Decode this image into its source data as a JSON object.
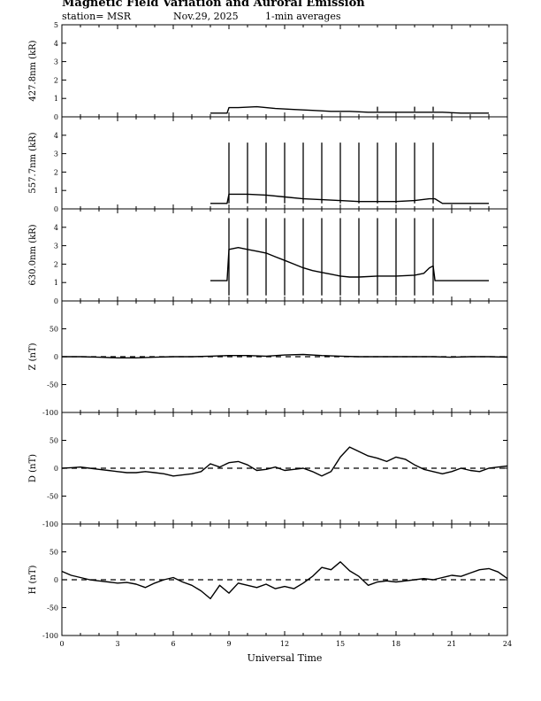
{
  "header": {
    "title": "Magnetic Field Variation and Auroral Emission",
    "station": "station= MSR",
    "date": "Nov.29, 2025",
    "averaging": "1-min averages"
  },
  "chart_data": [
    {
      "type": "line",
      "ylabel": "427.8nm (kR)",
      "ylim": [
        0,
        5
      ],
      "yticks": [
        "0",
        "1",
        "2",
        "3",
        "4",
        "5"
      ],
      "xlim": [
        0,
        24
      ],
      "series": [
        {
          "x": [
            8.0,
            8.9,
            9.0,
            9.5,
            10.5,
            11.5,
            12.5,
            13.5,
            14.5,
            15.5,
            16.5,
            17.5,
            18.5,
            19.5,
            20.5,
            21.5,
            22.5,
            23.0
          ],
          "values": [
            0.2,
            0.2,
            0.5,
            0.5,
            0.55,
            0.45,
            0.4,
            0.35,
            0.3,
            0.3,
            0.25,
            0.25,
            0.25,
            0.25,
            0.25,
            0.2,
            0.2,
            0.2
          ]
        }
      ],
      "spikes": {
        "x": [
          17.0,
          19.0,
          20.0
        ],
        "height": 0.55
      }
    },
    {
      "type": "line",
      "ylabel": "557.7nm (kR)",
      "ylim": [
        0,
        5
      ],
      "yticks": [
        "0",
        "1",
        "2",
        "3",
        "4"
      ],
      "xlim": [
        0,
        24
      ],
      "series": [
        {
          "x": [
            8.0,
            8.9,
            9.0,
            10.0,
            11.0,
            12.0,
            13.0,
            14.0,
            15.0,
            16.0,
            17.0,
            18.0,
            19.0,
            19.8,
            20.1,
            20.5,
            21.5,
            23.0
          ],
          "values": [
            0.3,
            0.3,
            0.8,
            0.8,
            0.75,
            0.65,
            0.55,
            0.5,
            0.45,
            0.4,
            0.4,
            0.4,
            0.45,
            0.55,
            0.55,
            0.3,
            0.3,
            0.3
          ]
        }
      ],
      "spikes": {
        "x": [
          9,
          10,
          11,
          12,
          13,
          14,
          15,
          16,
          17,
          18,
          19,
          20
        ],
        "height": 3.6
      }
    },
    {
      "type": "line",
      "ylabel": "630.0nm (kR)",
      "ylim": [
        0,
        5
      ],
      "yticks": [
        "0",
        "1",
        "2",
        "3",
        "4"
      ],
      "xlim": [
        0,
        24
      ],
      "series": [
        {
          "x": [
            8.0,
            8.9,
            9.0,
            9.5,
            10.0,
            10.5,
            11.0,
            11.5,
            12.0,
            12.5,
            13.0,
            13.5,
            14.0,
            14.5,
            15.0,
            15.5,
            16.0,
            17.0,
            18.0,
            19.0,
            19.5,
            19.8,
            20.0,
            20.1,
            21.0,
            22.0,
            23.0
          ],
          "values": [
            1.1,
            1.1,
            2.8,
            2.9,
            2.8,
            2.7,
            2.6,
            2.4,
            2.2,
            2.0,
            1.8,
            1.65,
            1.55,
            1.45,
            1.35,
            1.3,
            1.3,
            1.35,
            1.35,
            1.4,
            1.5,
            1.8,
            1.9,
            1.1,
            1.1,
            1.1,
            1.1
          ]
        }
      ],
      "spikes": {
        "x": [
          9,
          10,
          11,
          12,
          13,
          14,
          15,
          16,
          17,
          18,
          19,
          20
        ],
        "height": 4.5
      }
    },
    {
      "type": "line",
      "ylabel": "Z (nT)",
      "ylim": [
        -100,
        100
      ],
      "yticks": [
        "-100",
        "-50",
        "0",
        "50"
      ],
      "xlim": [
        0,
        24
      ],
      "series": [
        {
          "x": [
            0,
            1,
            2,
            3,
            4,
            5,
            6,
            7,
            8,
            9,
            10,
            11,
            12,
            13,
            14,
            15,
            16,
            17,
            18,
            19,
            20,
            21,
            22,
            23,
            24
          ],
          "values": [
            0,
            0,
            -1,
            -2,
            -2,
            -1,
            0,
            0,
            1,
            2,
            2,
            1,
            3,
            4,
            2,
            1,
            0,
            0,
            0,
            0,
            0,
            -1,
            0,
            0,
            -1
          ]
        }
      ],
      "baseline": 0
    },
    {
      "type": "line",
      "ylabel": "D (nT)",
      "ylim": [
        -100,
        100
      ],
      "yticks": [
        "-100",
        "-50",
        "0",
        "50"
      ],
      "xlim": [
        0,
        24
      ],
      "series": [
        {
          "x": [
            0,
            0.5,
            1,
            1.5,
            2,
            2.5,
            3,
            3.5,
            4,
            4.5,
            5,
            5.5,
            6,
            6.5,
            7,
            7.5,
            8,
            8.5,
            9,
            9.5,
            10,
            10.5,
            11,
            11.5,
            12,
            12.5,
            13,
            13.5,
            14,
            14.5,
            15,
            15.5,
            16,
            16.5,
            17,
            17.5,
            18,
            18.5,
            19,
            19.5,
            20,
            20.5,
            21,
            21.5,
            22,
            22.5,
            23,
            23.5,
            24
          ],
          "values": [
            0,
            1,
            2,
            0,
            -2,
            -4,
            -6,
            -8,
            -8,
            -6,
            -8,
            -10,
            -14,
            -12,
            -10,
            -6,
            8,
            2,
            10,
            12,
            6,
            -4,
            -2,
            2,
            -4,
            -2,
            0,
            -6,
            -14,
            -6,
            20,
            38,
            30,
            22,
            18,
            12,
            20,
            16,
            6,
            -2,
            -6,
            -10,
            -6,
            0,
            -4,
            -6,
            0,
            2,
            4
          ]
        }
      ],
      "baseline": 0
    },
    {
      "type": "line",
      "ylabel": "H (nT)",
      "ylim": [
        -100,
        100
      ],
      "yticks": [
        "-100",
        "-50",
        "0",
        "50"
      ],
      "xlim": [
        0,
        24
      ],
      "series": [
        {
          "x": [
            0,
            0.5,
            1,
            1.5,
            2,
            2.5,
            3,
            3.5,
            4,
            4.5,
            5,
            5.5,
            6,
            6.5,
            7,
            7.5,
            8,
            8.5,
            9,
            9.5,
            10,
            10.5,
            11,
            11.5,
            12,
            12.5,
            13,
            13.5,
            14,
            14.5,
            15,
            15.5,
            16,
            16.5,
            17,
            17.5,
            18,
            18.5,
            19,
            19.5,
            20,
            20.5,
            21,
            21.5,
            22,
            22.5,
            23,
            23.5,
            24
          ],
          "values": [
            15,
            8,
            4,
            0,
            -2,
            -4,
            -6,
            -5,
            -8,
            -14,
            -6,
            0,
            4,
            -4,
            -10,
            -20,
            -34,
            -10,
            -24,
            -6,
            -10,
            -14,
            -8,
            -16,
            -12,
            -16,
            -6,
            6,
            22,
            18,
            32,
            16,
            6,
            -10,
            -4,
            -2,
            -4,
            -2,
            0,
            2,
            0,
            4,
            8,
            6,
            12,
            18,
            20,
            14,
            2
          ]
        }
      ],
      "baseline": 0
    }
  ],
  "x_axis": {
    "label": "Universal Time",
    "ticks": [
      "0",
      "3",
      "6",
      "9",
      "12",
      "15",
      "18",
      "21",
      "24"
    ]
  },
  "colors": {
    "line": "#000000",
    "background": "#ffffff"
  }
}
